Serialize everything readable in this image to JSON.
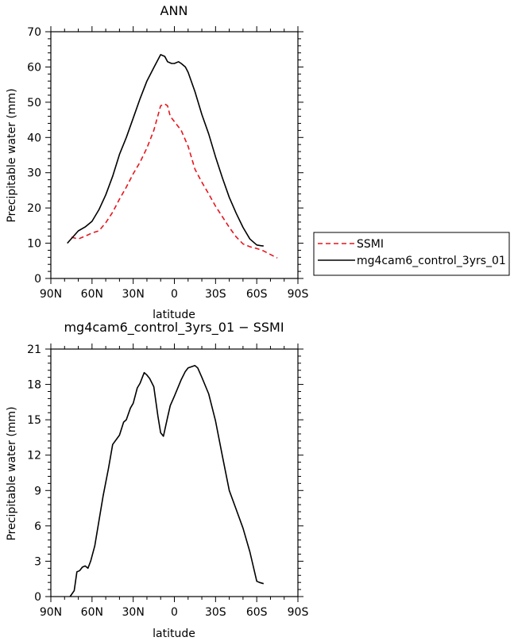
{
  "chart_data": [
    {
      "type": "line",
      "title": "ANN",
      "xlabel": "latitude",
      "ylabel": "Precipitable water (mm)",
      "xlim": [
        90,
        -90
      ],
      "ylim": [
        0,
        70
      ],
      "xticks": [
        90,
        60,
        30,
        0,
        -30,
        -60,
        -90
      ],
      "xtick_labels": [
        "90N",
        "60N",
        "30N",
        "0",
        "30S",
        "60S",
        "90S"
      ],
      "yticks": [
        0,
        10,
        20,
        30,
        40,
        50,
        60,
        70
      ],
      "ytick_labels": [
        "0",
        "10",
        "20",
        "30",
        "40",
        "50",
        "60",
        "70"
      ],
      "legend": "outside-right",
      "series": [
        {
          "name": "SSMI",
          "color": "#e8141c",
          "dash": true,
          "x": [
            75,
            70,
            65,
            60,
            55,
            50,
            45,
            40,
            35,
            30,
            25,
            20,
            15,
            10,
            7,
            5,
            3,
            0,
            -5,
            -10,
            -15,
            -20,
            -25,
            -30,
            -35,
            -40,
            -45,
            -50,
            -55,
            -60,
            -65,
            -70,
            -72,
            -75
          ],
          "y": [
            11.7,
            11.2,
            12.0,
            12.9,
            13.5,
            15.8,
            18.8,
            22.5,
            25.9,
            29.7,
            33.0,
            37.0,
            42.0,
            49.0,
            49.5,
            49.0,
            46.0,
            44.5,
            42.0,
            37.5,
            31.0,
            27.3,
            24.0,
            20.5,
            17.5,
            14.5,
            11.8,
            9.8,
            9.0,
            8.5,
            7.8,
            6.8,
            6.4,
            5.8
          ]
        },
        {
          "name": "mg4cam6_control_3yrs_01",
          "color": "#000000",
          "dash": false,
          "x": [
            78,
            70,
            65,
            60,
            55,
            50,
            45,
            40,
            35,
            30,
            25,
            20,
            15,
            10,
            7,
            5,
            2,
            0,
            -3,
            -5,
            -8,
            -10,
            -15,
            -20,
            -25,
            -30,
            -35,
            -40,
            -45,
            -50,
            -55,
            -60,
            -63,
            -65
          ],
          "y": [
            10.0,
            13.5,
            14.6,
            16.2,
            19.5,
            23.7,
            29.0,
            35.2,
            40.0,
            45.5,
            51.0,
            56.0,
            59.8,
            63.5,
            63.0,
            61.5,
            61.0,
            61.0,
            61.5,
            61.0,
            60.0,
            58.5,
            53.0,
            46.5,
            41.0,
            34.5,
            28.5,
            23.0,
            18.5,
            14.5,
            11.2,
            9.5,
            9.3,
            9.2
          ]
        }
      ]
    },
    {
      "type": "line",
      "title": "mg4cam6_control_3yrs_01 − SSMI",
      "xlabel": "latitude",
      "ylabel": "Precipitable water (mm)",
      "xlim": [
        90,
        -90
      ],
      "ylim": [
        0,
        21
      ],
      "xticks": [
        90,
        60,
        30,
        0,
        -30,
        -60,
        -90
      ],
      "xtick_labels": [
        "90N",
        "60N",
        "30N",
        "0",
        "30S",
        "60S",
        "90S"
      ],
      "yticks": [
        0,
        3,
        6,
        9,
        12,
        15,
        18,
        21
      ],
      "ytick_labels": [
        "0",
        "3",
        "6",
        "9",
        "12",
        "15",
        "18",
        "21"
      ],
      "series": [
        {
          "color": "#000000",
          "dash": false,
          "x": [
            76,
            73,
            71,
            69,
            67,
            65,
            63,
            61,
            58,
            55,
            52,
            48,
            45,
            40,
            37,
            35,
            32,
            30,
            27,
            25,
            22,
            20,
            18,
            15,
            12,
            10,
            8,
            5,
            3,
            0,
            -5,
            -8,
            -10,
            -15,
            -17,
            -20,
            -25,
            -30,
            -35,
            -40,
            -45,
            -50,
            -55,
            -60,
            -62,
            -65
          ],
          "y": [
            0.0,
            0.5,
            2.1,
            2.2,
            2.5,
            2.6,
            2.4,
            3.0,
            4.3,
            6.4,
            8.5,
            10.9,
            12.9,
            13.7,
            14.8,
            15.0,
            16.0,
            16.4,
            17.7,
            18.1,
            19.0,
            18.8,
            18.5,
            17.8,
            15.3,
            13.9,
            13.6,
            15.2,
            16.2,
            17.0,
            18.4,
            19.1,
            19.4,
            19.6,
            19.4,
            18.6,
            17.2,
            14.9,
            11.9,
            9.0,
            7.4,
            5.8,
            3.8,
            1.3,
            1.2,
            1.1
          ]
        }
      ]
    }
  ]
}
